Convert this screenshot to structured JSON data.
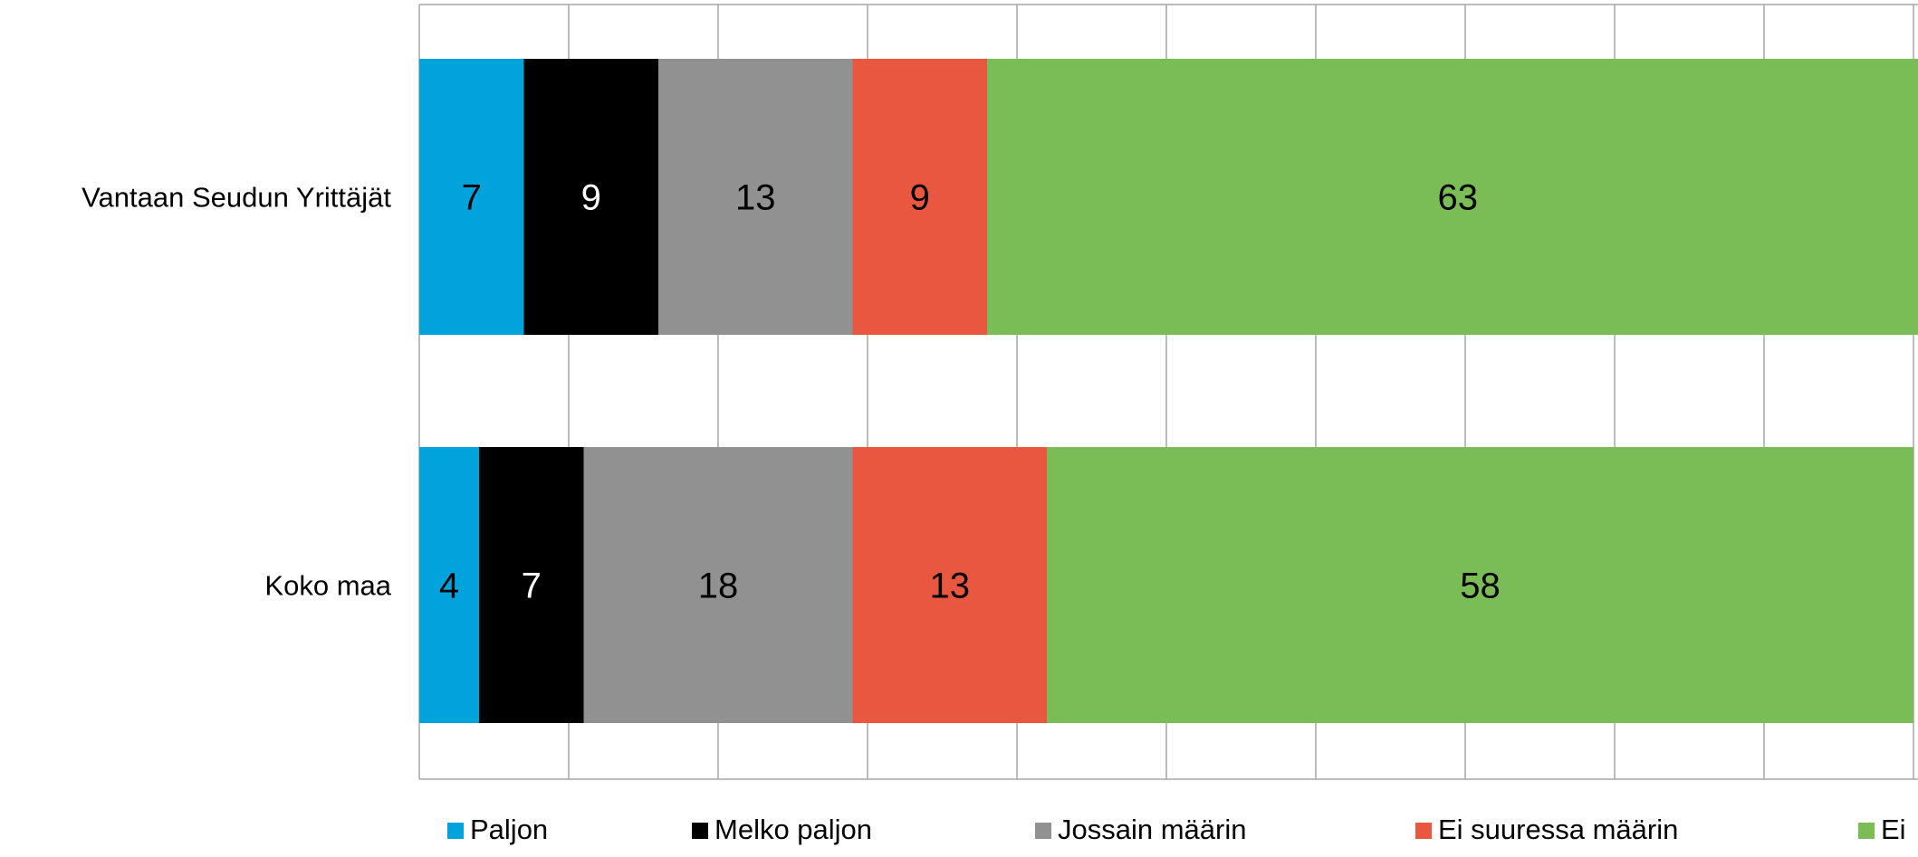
{
  "colors": {
    "background": "#ffffff",
    "grid": "#a6a6a6"
  },
  "chart_data": {
    "type": "bar",
    "orientation": "horizontal",
    "stacked": true,
    "title": "",
    "xlabel": "",
    "ylabel": "",
    "xlim": [
      0,
      100
    ],
    "grid": true,
    "legend_position": "bottom",
    "categories": [
      "Vantaan Seudun Yrittäjät",
      "Koko maa"
    ],
    "series": [
      {
        "name": "Paljon",
        "color": "#00a3dc",
        "label_color": "#000000",
        "values": [
          7,
          4
        ]
      },
      {
        "name": "Melko paljon",
        "color": "#000000",
        "label_color": "#ffffff",
        "values": [
          9,
          7
        ]
      },
      {
        "name": "Jossain määrin",
        "color": "#919191",
        "label_color": "#000000",
        "values": [
          13,
          18
        ]
      },
      {
        "name": "Ei suuressa määrin",
        "color": "#ea5741",
        "label_color": "#000000",
        "values": [
          9,
          13
        ]
      },
      {
        "name": "Ei",
        "color": "#7abc55",
        "label_color": "#000000",
        "values": [
          63,
          58
        ]
      }
    ]
  }
}
